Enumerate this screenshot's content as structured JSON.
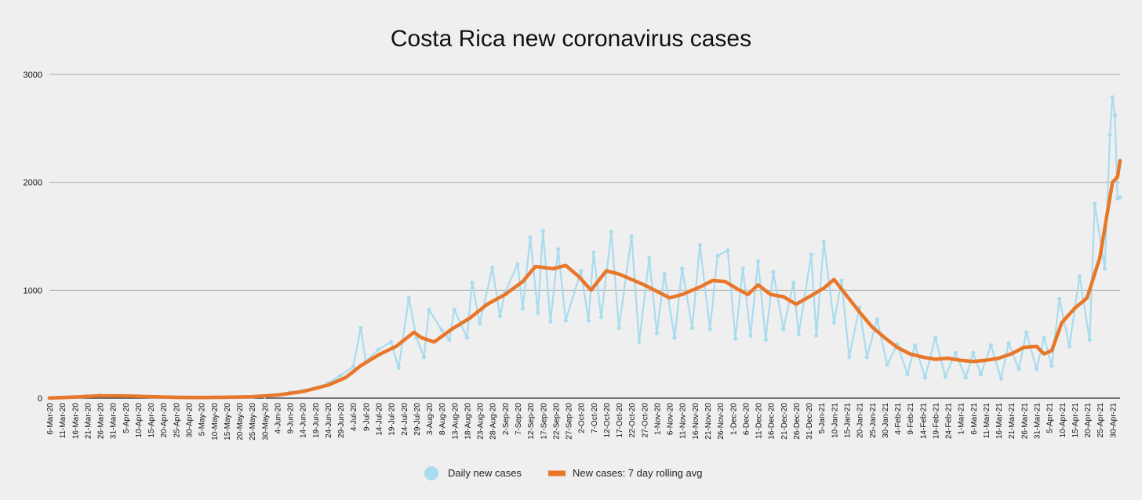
{
  "chart_data": {
    "type": "line",
    "title": "Costa Rica new coronavirus cases",
    "xlabel": "",
    "ylabel": "",
    "ylim": [
      0,
      3000
    ],
    "yticks": [
      0,
      1000,
      2000,
      3000
    ],
    "ytick_labels": [
      "0",
      "1000",
      "2000",
      "3000"
    ],
    "grid": true,
    "legend_position": "bottom-center",
    "x_start_date": "2020-03-06",
    "x_end_date": "2021-05-03",
    "xtick_labels": [
      "6-Mar-20",
      "11-Mar-20",
      "16-Mar-20",
      "21-Mar-20",
      "26-Mar-20",
      "31-Mar-20",
      "5-Apr-20",
      "10-Apr-20",
      "15-Apr-20",
      "20-Apr-20",
      "25-Apr-20",
      "30-Apr-20",
      "5-May-20",
      "10-May-20",
      "15-May-20",
      "20-May-20",
      "25-May-20",
      "30-May-20",
      "4-Jun-20",
      "9-Jun-20",
      "14-Jun-20",
      "19-Jun-20",
      "24-Jun-20",
      "29-Jun-20",
      "4-Jul-20",
      "9-Jul-20",
      "14-Jul-20",
      "19-Jul-20",
      "24-Jul-20",
      "29-Jul-20",
      "3-Aug-20",
      "8-Aug-20",
      "13-Aug-20",
      "18-Aug-20",
      "23-Aug-20",
      "28-Aug-20",
      "2-Sep-20",
      "7-Sep-20",
      "12-Sep-20",
      "17-Sep-20",
      "22-Sep-20",
      "27-Sep-20",
      "2-Oct-20",
      "7-Oct-20",
      "12-Oct-20",
      "17-Oct-20",
      "22-Oct-20",
      "27-Oct-20",
      "1-Nov-20",
      "6-Nov-20",
      "11-Nov-20",
      "16-Nov-20",
      "21-Nov-20",
      "26-Nov-20",
      "1-Dec-20",
      "6-Dec-20",
      "11-Dec-20",
      "16-Dec-20",
      "21-Dec-20",
      "26-Dec-20",
      "31-Dec-20",
      "5-Jan-21",
      "10-Jan-21",
      "15-Jan-21",
      "20-Jan-21",
      "25-Jan-21",
      "30-Jan-21",
      "4-Feb-21",
      "9-Feb-21",
      "14-Feb-21",
      "19-Feb-21",
      "24-Feb-21",
      "1-Mar-21",
      "6-Mar-21",
      "11-Mar-21",
      "16-Mar-21",
      "21-Mar-21",
      "26-Mar-21",
      "31-Mar-21",
      "5-Apr-21",
      "10-Apr-21",
      "15-Apr-21",
      "20-Apr-21",
      "25-Apr-21",
      "30-Apr-21"
    ],
    "series": [
      {
        "name": "Daily new cases",
        "color": "#a9dcee",
        "style": "thin line with circular markers",
        "points": [
          [
            "2020-03-06",
            1
          ],
          [
            "2020-03-11",
            5
          ],
          [
            "2020-03-16",
            12
          ],
          [
            "2020-03-21",
            20
          ],
          [
            "2020-03-26",
            25
          ],
          [
            "2020-03-31",
            22
          ],
          [
            "2020-04-05",
            20
          ],
          [
            "2020-04-10",
            18
          ],
          [
            "2020-04-15",
            15
          ],
          [
            "2020-04-20",
            8
          ],
          [
            "2020-04-25",
            6
          ],
          [
            "2020-04-30",
            5
          ],
          [
            "2020-05-05",
            6
          ],
          [
            "2020-05-10",
            7
          ],
          [
            "2020-05-15",
            8
          ],
          [
            "2020-05-20",
            10
          ],
          [
            "2020-05-25",
            12
          ],
          [
            "2020-05-30",
            15
          ],
          [
            "2020-06-04",
            30
          ],
          [
            "2020-06-09",
            55
          ],
          [
            "2020-06-14",
            70
          ],
          [
            "2020-06-19",
            90
          ],
          [
            "2020-06-24",
            140
          ],
          [
            "2020-06-29",
            210
          ],
          [
            "2020-07-04",
            290
          ],
          [
            "2020-07-07",
            650
          ],
          [
            "2020-07-09",
            340
          ],
          [
            "2020-07-14",
            450
          ],
          [
            "2020-07-19",
            520
          ],
          [
            "2020-07-22",
            280
          ],
          [
            "2020-07-26",
            930
          ],
          [
            "2020-07-29",
            560
          ],
          [
            "2020-08-01",
            380
          ],
          [
            "2020-08-03",
            820
          ],
          [
            "2020-08-08",
            630
          ],
          [
            "2020-08-11",
            540
          ],
          [
            "2020-08-13",
            820
          ],
          [
            "2020-08-18",
            560
          ],
          [
            "2020-08-20",
            1070
          ],
          [
            "2020-08-23",
            690
          ],
          [
            "2020-08-28",
            1210
          ],
          [
            "2020-08-31",
            760
          ],
          [
            "2020-09-02",
            980
          ],
          [
            "2020-09-07",
            1240
          ],
          [
            "2020-09-09",
            830
          ],
          [
            "2020-09-12",
            1490
          ],
          [
            "2020-09-15",
            790
          ],
          [
            "2020-09-17",
            1550
          ],
          [
            "2020-09-20",
            710
          ],
          [
            "2020-09-23",
            1380
          ],
          [
            "2020-09-26",
            720
          ],
          [
            "2020-10-02",
            1180
          ],
          [
            "2020-10-05",
            720
          ],
          [
            "2020-10-07",
            1350
          ],
          [
            "2020-10-10",
            750
          ],
          [
            "2020-10-14",
            1540
          ],
          [
            "2020-10-17",
            650
          ],
          [
            "2020-10-22",
            1500
          ],
          [
            "2020-10-25",
            520
          ],
          [
            "2020-10-29",
            1300
          ],
          [
            "2020-11-01",
            600
          ],
          [
            "2020-11-04",
            1150
          ],
          [
            "2020-11-08",
            560
          ],
          [
            "2020-11-11",
            1200
          ],
          [
            "2020-11-15",
            650
          ],
          [
            "2020-11-18",
            1420
          ],
          [
            "2020-11-22",
            640
          ],
          [
            "2020-11-25",
            1320
          ],
          [
            "2020-11-29",
            1370
          ],
          [
            "2020-12-02",
            550
          ],
          [
            "2020-12-05",
            1200
          ],
          [
            "2020-12-08",
            580
          ],
          [
            "2020-12-11",
            1270
          ],
          [
            "2020-12-14",
            540
          ],
          [
            "2020-12-17",
            1170
          ],
          [
            "2020-12-21",
            640
          ],
          [
            "2020-12-25",
            1070
          ],
          [
            "2020-12-27",
            590
          ],
          [
            "2021-01-01",
            1330
          ],
          [
            "2021-01-03",
            580
          ],
          [
            "2021-01-06",
            1450
          ],
          [
            "2021-01-10",
            700
          ],
          [
            "2021-01-13",
            1090
          ],
          [
            "2021-01-16",
            380
          ],
          [
            "2021-01-20",
            840
          ],
          [
            "2021-01-23",
            380
          ],
          [
            "2021-01-27",
            730
          ],
          [
            "2021-01-31",
            310
          ],
          [
            "2021-02-04",
            500
          ],
          [
            "2021-02-08",
            220
          ],
          [
            "2021-02-11",
            490
          ],
          [
            "2021-02-15",
            190
          ],
          [
            "2021-02-19",
            560
          ],
          [
            "2021-02-23",
            200
          ],
          [
            "2021-02-27",
            420
          ],
          [
            "2021-03-03",
            190
          ],
          [
            "2021-03-06",
            420
          ],
          [
            "2021-03-09",
            220
          ],
          [
            "2021-03-13",
            490
          ],
          [
            "2021-03-17",
            180
          ],
          [
            "2021-03-20",
            510
          ],
          [
            "2021-03-24",
            270
          ],
          [
            "2021-03-27",
            610
          ],
          [
            "2021-03-31",
            270
          ],
          [
            "2021-04-03",
            560
          ],
          [
            "2021-04-06",
            300
          ],
          [
            "2021-04-09",
            920
          ],
          [
            "2021-04-13",
            480
          ],
          [
            "2021-04-17",
            1130
          ],
          [
            "2021-04-21",
            540
          ],
          [
            "2021-04-23",
            1800
          ],
          [
            "2021-04-27",
            1200
          ],
          [
            "2021-04-29",
            2440
          ],
          [
            "2021-04-30",
            2790
          ],
          [
            "2021-05-01",
            2620
          ],
          [
            "2021-05-02",
            1850
          ],
          [
            "2021-05-03",
            1860
          ]
        ]
      },
      {
        "name": "New cases: 7 day rolling avg",
        "color": "#e8772a",
        "style": "thick line",
        "points": [
          [
            "2020-03-06",
            1
          ],
          [
            "2020-03-16",
            10
          ],
          [
            "2020-03-26",
            22
          ],
          [
            "2020-04-05",
            20
          ],
          [
            "2020-04-15",
            14
          ],
          [
            "2020-04-25",
            7
          ],
          [
            "2020-05-05",
            6
          ],
          [
            "2020-05-15",
            8
          ],
          [
            "2020-05-25",
            12
          ],
          [
            "2020-06-04",
            28
          ],
          [
            "2020-06-14",
            60
          ],
          [
            "2020-06-24",
            120
          ],
          [
            "2020-07-01",
            190
          ],
          [
            "2020-07-07",
            300
          ],
          [
            "2020-07-14",
            400
          ],
          [
            "2020-07-21",
            480
          ],
          [
            "2020-07-28",
            610
          ],
          [
            "2020-07-31",
            560
          ],
          [
            "2020-08-05",
            520
          ],
          [
            "2020-08-12",
            640
          ],
          [
            "2020-08-19",
            740
          ],
          [
            "2020-08-26",
            870
          ],
          [
            "2020-09-02",
            960
          ],
          [
            "2020-09-09",
            1080
          ],
          [
            "2020-09-14",
            1220
          ],
          [
            "2020-09-21",
            1200
          ],
          [
            "2020-09-26",
            1230
          ],
          [
            "2020-10-01",
            1130
          ],
          [
            "2020-10-06",
            1000
          ],
          [
            "2020-10-12",
            1180
          ],
          [
            "2020-10-17",
            1150
          ],
          [
            "2020-10-22",
            1100
          ],
          [
            "2020-10-27",
            1050
          ],
          [
            "2020-11-01",
            990
          ],
          [
            "2020-11-06",
            930
          ],
          [
            "2020-11-11",
            960
          ],
          [
            "2020-11-18",
            1030
          ],
          [
            "2020-11-23",
            1090
          ],
          [
            "2020-11-28",
            1080
          ],
          [
            "2020-12-03",
            1010
          ],
          [
            "2020-12-07",
            960
          ],
          [
            "2020-12-11",
            1050
          ],
          [
            "2020-12-16",
            960
          ],
          [
            "2020-12-21",
            940
          ],
          [
            "2020-12-26",
            870
          ],
          [
            "2021-01-01",
            950
          ],
          [
            "2021-01-06",
            1020
          ],
          [
            "2021-01-10",
            1100
          ],
          [
            "2021-01-15",
            950
          ],
          [
            "2021-01-20",
            800
          ],
          [
            "2021-01-25",
            660
          ],
          [
            "2021-01-30",
            560
          ],
          [
            "2021-02-04",
            470
          ],
          [
            "2021-02-09",
            410
          ],
          [
            "2021-02-14",
            380
          ],
          [
            "2021-02-19",
            360
          ],
          [
            "2021-02-24",
            370
          ],
          [
            "2021-03-01",
            350
          ],
          [
            "2021-03-06",
            340
          ],
          [
            "2021-03-11",
            350
          ],
          [
            "2021-03-16",
            370
          ],
          [
            "2021-03-21",
            410
          ],
          [
            "2021-03-26",
            470
          ],
          [
            "2021-03-31",
            480
          ],
          [
            "2021-04-03",
            410
          ],
          [
            "2021-04-06",
            440
          ],
          [
            "2021-04-10",
            700
          ],
          [
            "2021-04-15",
            830
          ],
          [
            "2021-04-20",
            930
          ],
          [
            "2021-04-25",
            1300
          ],
          [
            "2021-04-30",
            2000
          ],
          [
            "2021-05-02",
            2050
          ],
          [
            "2021-05-03",
            2200
          ]
        ]
      }
    ]
  }
}
